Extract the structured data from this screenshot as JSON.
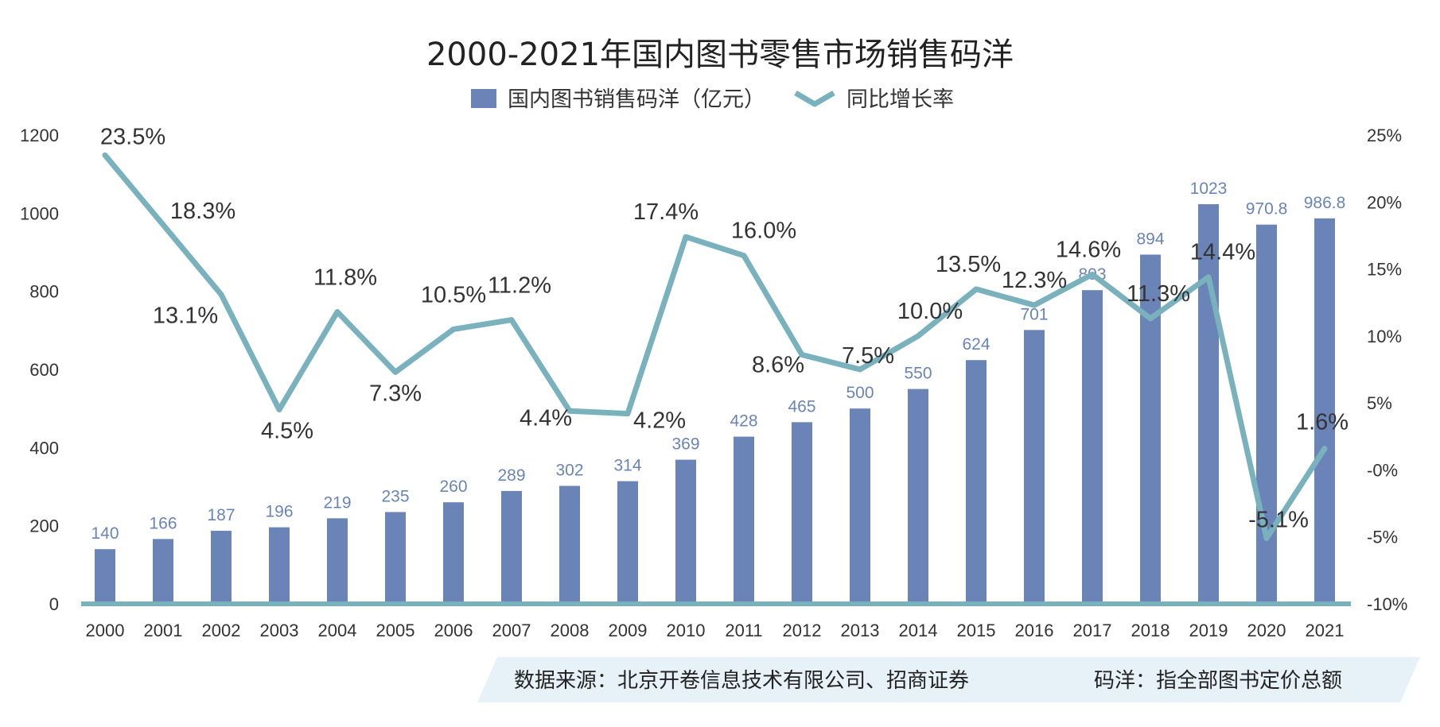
{
  "chart_data": {
    "type": "bar+line",
    "title": "2000-2021年国内图书零售市场销售码洋",
    "categories": [
      "2000",
      "2001",
      "2002",
      "2003",
      "2004",
      "2005",
      "2006",
      "2007",
      "2008",
      "2009",
      "2010",
      "2011",
      "2012",
      "2013",
      "2014",
      "2015",
      "2016",
      "2017",
      "2018",
      "2019",
      "2020",
      "2021"
    ],
    "series": [
      {
        "name": "国内图书销售码洋（亿元）",
        "type": "bar",
        "axis": "left",
        "color": "#6a84b8",
        "values": [
          140,
          166,
          187,
          196,
          219,
          235,
          260,
          289,
          302,
          314,
          369,
          428,
          465,
          500,
          550,
          624,
          701,
          803,
          894,
          1023,
          970.8,
          986.8
        ],
        "labels": [
          "140",
          "166",
          "187",
          "196",
          "219",
          "235",
          "260",
          "289",
          "302",
          "314",
          "369",
          "428",
          "465",
          "500",
          "550",
          "624",
          "701",
          "803",
          "894",
          "1023",
          "970.8",
          "986.8"
        ]
      },
      {
        "name": "同比增长率",
        "type": "line",
        "axis": "right",
        "color": "#79b2bd",
        "values": [
          23.5,
          18.3,
          13.1,
          4.5,
          11.8,
          7.3,
          10.5,
          11.2,
          4.4,
          4.2,
          17.4,
          16.0,
          8.6,
          7.5,
          10.0,
          13.5,
          12.3,
          14.6,
          11.3,
          14.4,
          -5.1,
          1.6
        ],
        "labels": [
          "23.5%",
          "18.3%",
          "13.1%",
          "4.5%",
          "11.8%",
          "7.3%",
          "10.5%",
          "11.2%",
          "4.4%",
          "4.2%",
          "17.4%",
          "16.0%",
          "8.6%",
          "7.5%",
          "10.0%",
          "13.5%",
          "12.3%",
          "14.6%",
          "11.3%",
          "14.4%",
          "-5.1%",
          "1.6%"
        ]
      }
    ],
    "y_left": {
      "range": [
        0,
        1200
      ],
      "ticks": [
        "0",
        "200",
        "400",
        "600",
        "800",
        "1000",
        "1200"
      ]
    },
    "y_right": {
      "range": [
        -10,
        25
      ],
      "ticks": [
        "-10%",
        "-5%",
        "-0%",
        "5%",
        "10%",
        "15%",
        "20%",
        "25%"
      ]
    },
    "legend_position": "top-center",
    "grid": false
  },
  "footer": {
    "source": "数据来源：北京开卷信息技术有限公司、招商证券",
    "note": "码洋：指全部图书定价总额",
    "band_color": "#e6f1f8"
  }
}
